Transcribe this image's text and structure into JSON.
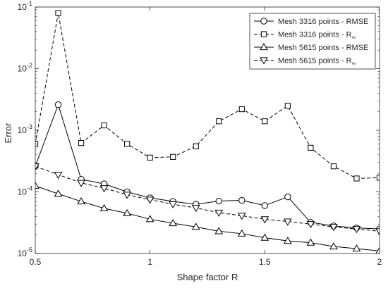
{
  "chart_data": {
    "type": "line",
    "xlabel": "Shape factor R",
    "ylabel": "Error",
    "yscale": "log",
    "xlim": [
      0.5,
      2
    ],
    "ylim": [
      1e-05,
      0.1
    ],
    "grid": false,
    "legend_position": "top-right",
    "x_ticks": [
      {
        "value": 0.5,
        "label": "0.5"
      },
      {
        "value": 1,
        "label": "1"
      },
      {
        "value": 1.5,
        "label": "1.5"
      },
      {
        "value": 2,
        "label": "2"
      }
    ],
    "y_ticks": [
      {
        "exp": -5,
        "base": "10",
        "sup": "-5"
      },
      {
        "exp": -4,
        "base": "10",
        "sup": "-4"
      },
      {
        "exp": -3,
        "base": "10",
        "sup": "-3"
      },
      {
        "exp": -2,
        "base": "10",
        "sup": "-2"
      },
      {
        "exp": -1,
        "base": "10",
        "sup": "-1"
      }
    ],
    "x": [
      0.5,
      0.6,
      0.7,
      0.8,
      0.9,
      1.0,
      1.1,
      1.2,
      1.3,
      1.4,
      1.5,
      1.6,
      1.7,
      1.8,
      1.9,
      2.0
    ],
    "series": [
      {
        "name": "Mesh 3316 points - RMSE",
        "marker": "circle",
        "dash": "solid",
        "color": "#000000",
        "values": [
          0.00026,
          0.0026,
          0.00016,
          0.000135,
          0.0001,
          8e-05,
          7e-05,
          6.3e-05,
          7.1e-05,
          7.3e-05,
          6e-05,
          8.3e-05,
          3.2e-05,
          2.8e-05,
          2.6e-05,
          2.5e-05
        ]
      },
      {
        "name": "Mesh 3316 points - R∞",
        "name_base": "Mesh 3316 points - R",
        "name_sub": "∞",
        "marker": "square",
        "dash": "dashed",
        "color": "#000000",
        "values": [
          0.0006,
          0.08,
          0.00062,
          0.0012,
          0.0006,
          0.00036,
          0.00037,
          0.00055,
          0.0014,
          0.0022,
          0.0014,
          0.0025,
          0.00052,
          0.00026,
          0.000165,
          0.00017
        ]
      },
      {
        "name": "Mesh 5615 points - RMSE",
        "marker": "triangle-up",
        "dash": "solid",
        "color": "#000000",
        "values": [
          0.000125,
          9.3e-05,
          7e-05,
          5.4e-05,
          4.5e-05,
          3.6e-05,
          3.1e-05,
          2.7e-05,
          2.3e-05,
          2.1e-05,
          1.8e-05,
          1.6e-05,
          1.5e-05,
          1.3e-05,
          1.2e-05,
          1.1e-05
        ]
      },
      {
        "name": "Mesh 5615 points - R∞",
        "name_base": "Mesh 5615 points - R",
        "name_sub": "∞",
        "marker": "triangle-down",
        "dash": "dashed",
        "color": "#000000",
        "values": [
          0.00026,
          0.00019,
          0.00014,
          0.000115,
          9e-05,
          7.5e-05,
          6.3e-05,
          5.5e-05,
          4.6e-05,
          4.1e-05,
          3.6e-05,
          3.3e-05,
          3e-05,
          2.7e-05,
          2.5e-05,
          2.3e-05
        ]
      }
    ]
  }
}
